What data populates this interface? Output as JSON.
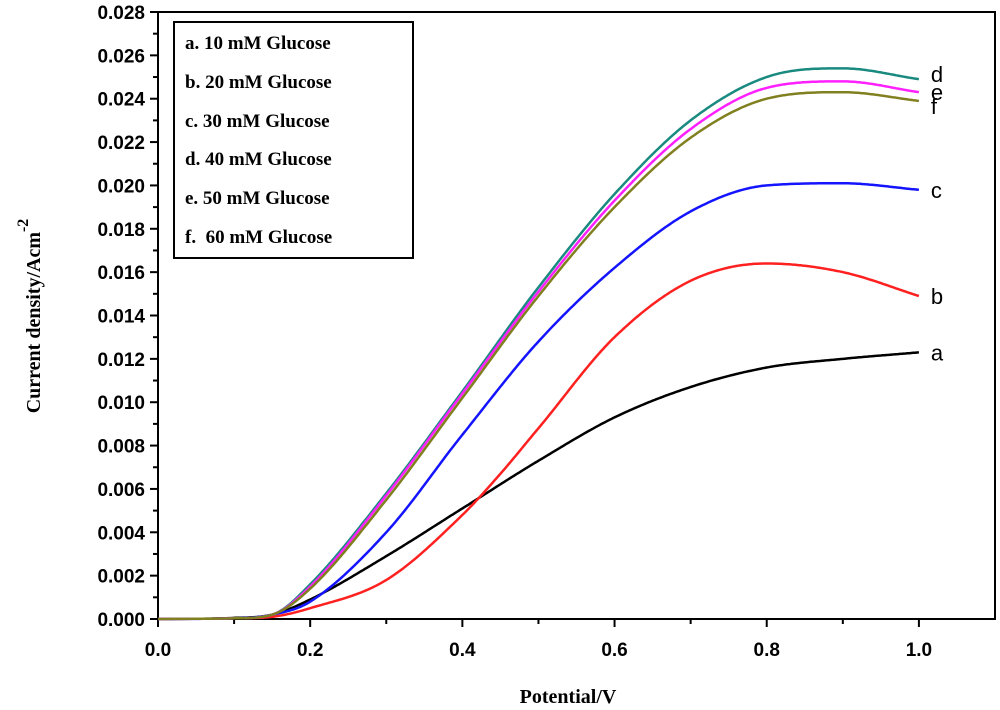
{
  "chart_data": {
    "type": "line",
    "xlabel": "Potential/V",
    "ylabel": "Current density/Acm",
    "ylabel_superscript": "-2",
    "xlim": [
      0.0,
      1.1
    ],
    "ylim": [
      0.0,
      0.028
    ],
    "x_ticks": [
      "0.0",
      "0.2",
      "0.4",
      "0.6",
      "0.8",
      "1.0"
    ],
    "y_ticks": [
      "0.000",
      "0.002",
      "0.004",
      "0.006",
      "0.008",
      "0.010",
      "0.012",
      "0.014",
      "0.016",
      "0.018",
      "0.020",
      "0.022",
      "0.024",
      "0.026",
      "0.028"
    ],
    "grid": false,
    "legend_position": "top-left",
    "series": [
      {
        "name": "a. 10 mM Glucose",
        "end_label": "a",
        "color": "#000000",
        "x": [
          0.0,
          0.1,
          0.15,
          0.2,
          0.3,
          0.4,
          0.5,
          0.6,
          0.7,
          0.8,
          0.9,
          1.0
        ],
        "y": [
          0.0,
          5e-05,
          0.0002,
          0.0009,
          0.0029,
          0.0051,
          0.0073,
          0.0093,
          0.0107,
          0.0116,
          0.012,
          0.0123
        ]
      },
      {
        "name": "b. 20 mM Glucose",
        "end_label": "b",
        "color": "#ff2020",
        "x": [
          0.0,
          0.1,
          0.15,
          0.2,
          0.3,
          0.4,
          0.45,
          0.5,
          0.6,
          0.7,
          0.8,
          0.9,
          1.0
        ],
        "y": [
          0.0,
          3e-05,
          0.0001,
          0.0005,
          0.0018,
          0.0048,
          0.0067,
          0.0088,
          0.013,
          0.0156,
          0.0164,
          0.016,
          0.0149
        ]
      },
      {
        "name": "c. 30 mM Glucose",
        "end_label": "c",
        "color": "#1414ff",
        "x": [
          0.0,
          0.1,
          0.15,
          0.2,
          0.3,
          0.4,
          0.5,
          0.6,
          0.7,
          0.8,
          0.9,
          1.0
        ],
        "y": [
          0.0,
          3e-05,
          0.0002,
          0.0008,
          0.004,
          0.0085,
          0.0128,
          0.0162,
          0.0188,
          0.02,
          0.0201,
          0.0198
        ]
      },
      {
        "name": "d. 40 mM Glucose",
        "end_label": "d",
        "color": "#1a8a80",
        "x": [
          0.0,
          0.1,
          0.15,
          0.2,
          0.3,
          0.4,
          0.5,
          0.6,
          0.7,
          0.8,
          0.9,
          1.0
        ],
        "y": [
          0.0,
          3e-05,
          0.0002,
          0.0016,
          0.0058,
          0.0105,
          0.0153,
          0.0196,
          0.023,
          0.025,
          0.0254,
          0.0249
        ]
      },
      {
        "name": "e. 50 mM Glucose",
        "end_label": "e",
        "color": "#ff20ff",
        "x": [
          0.0,
          0.1,
          0.15,
          0.2,
          0.3,
          0.4,
          0.5,
          0.6,
          0.7,
          0.8,
          0.9,
          1.0
        ],
        "y": [
          0.0,
          3e-05,
          0.0002,
          0.0015,
          0.0057,
          0.0104,
          0.0151,
          0.0193,
          0.0226,
          0.0245,
          0.0248,
          0.0243
        ]
      },
      {
        "name": "f.  60 mM Glucose",
        "end_label": "f",
        "color": "#808020",
        "x": [
          0.0,
          0.1,
          0.15,
          0.2,
          0.3,
          0.4,
          0.5,
          0.6,
          0.7,
          0.8,
          0.9,
          1.0
        ],
        "y": [
          0.0,
          3e-05,
          0.0002,
          0.0014,
          0.0055,
          0.0102,
          0.0149,
          0.019,
          0.0222,
          0.024,
          0.0243,
          0.0239
        ]
      }
    ]
  }
}
